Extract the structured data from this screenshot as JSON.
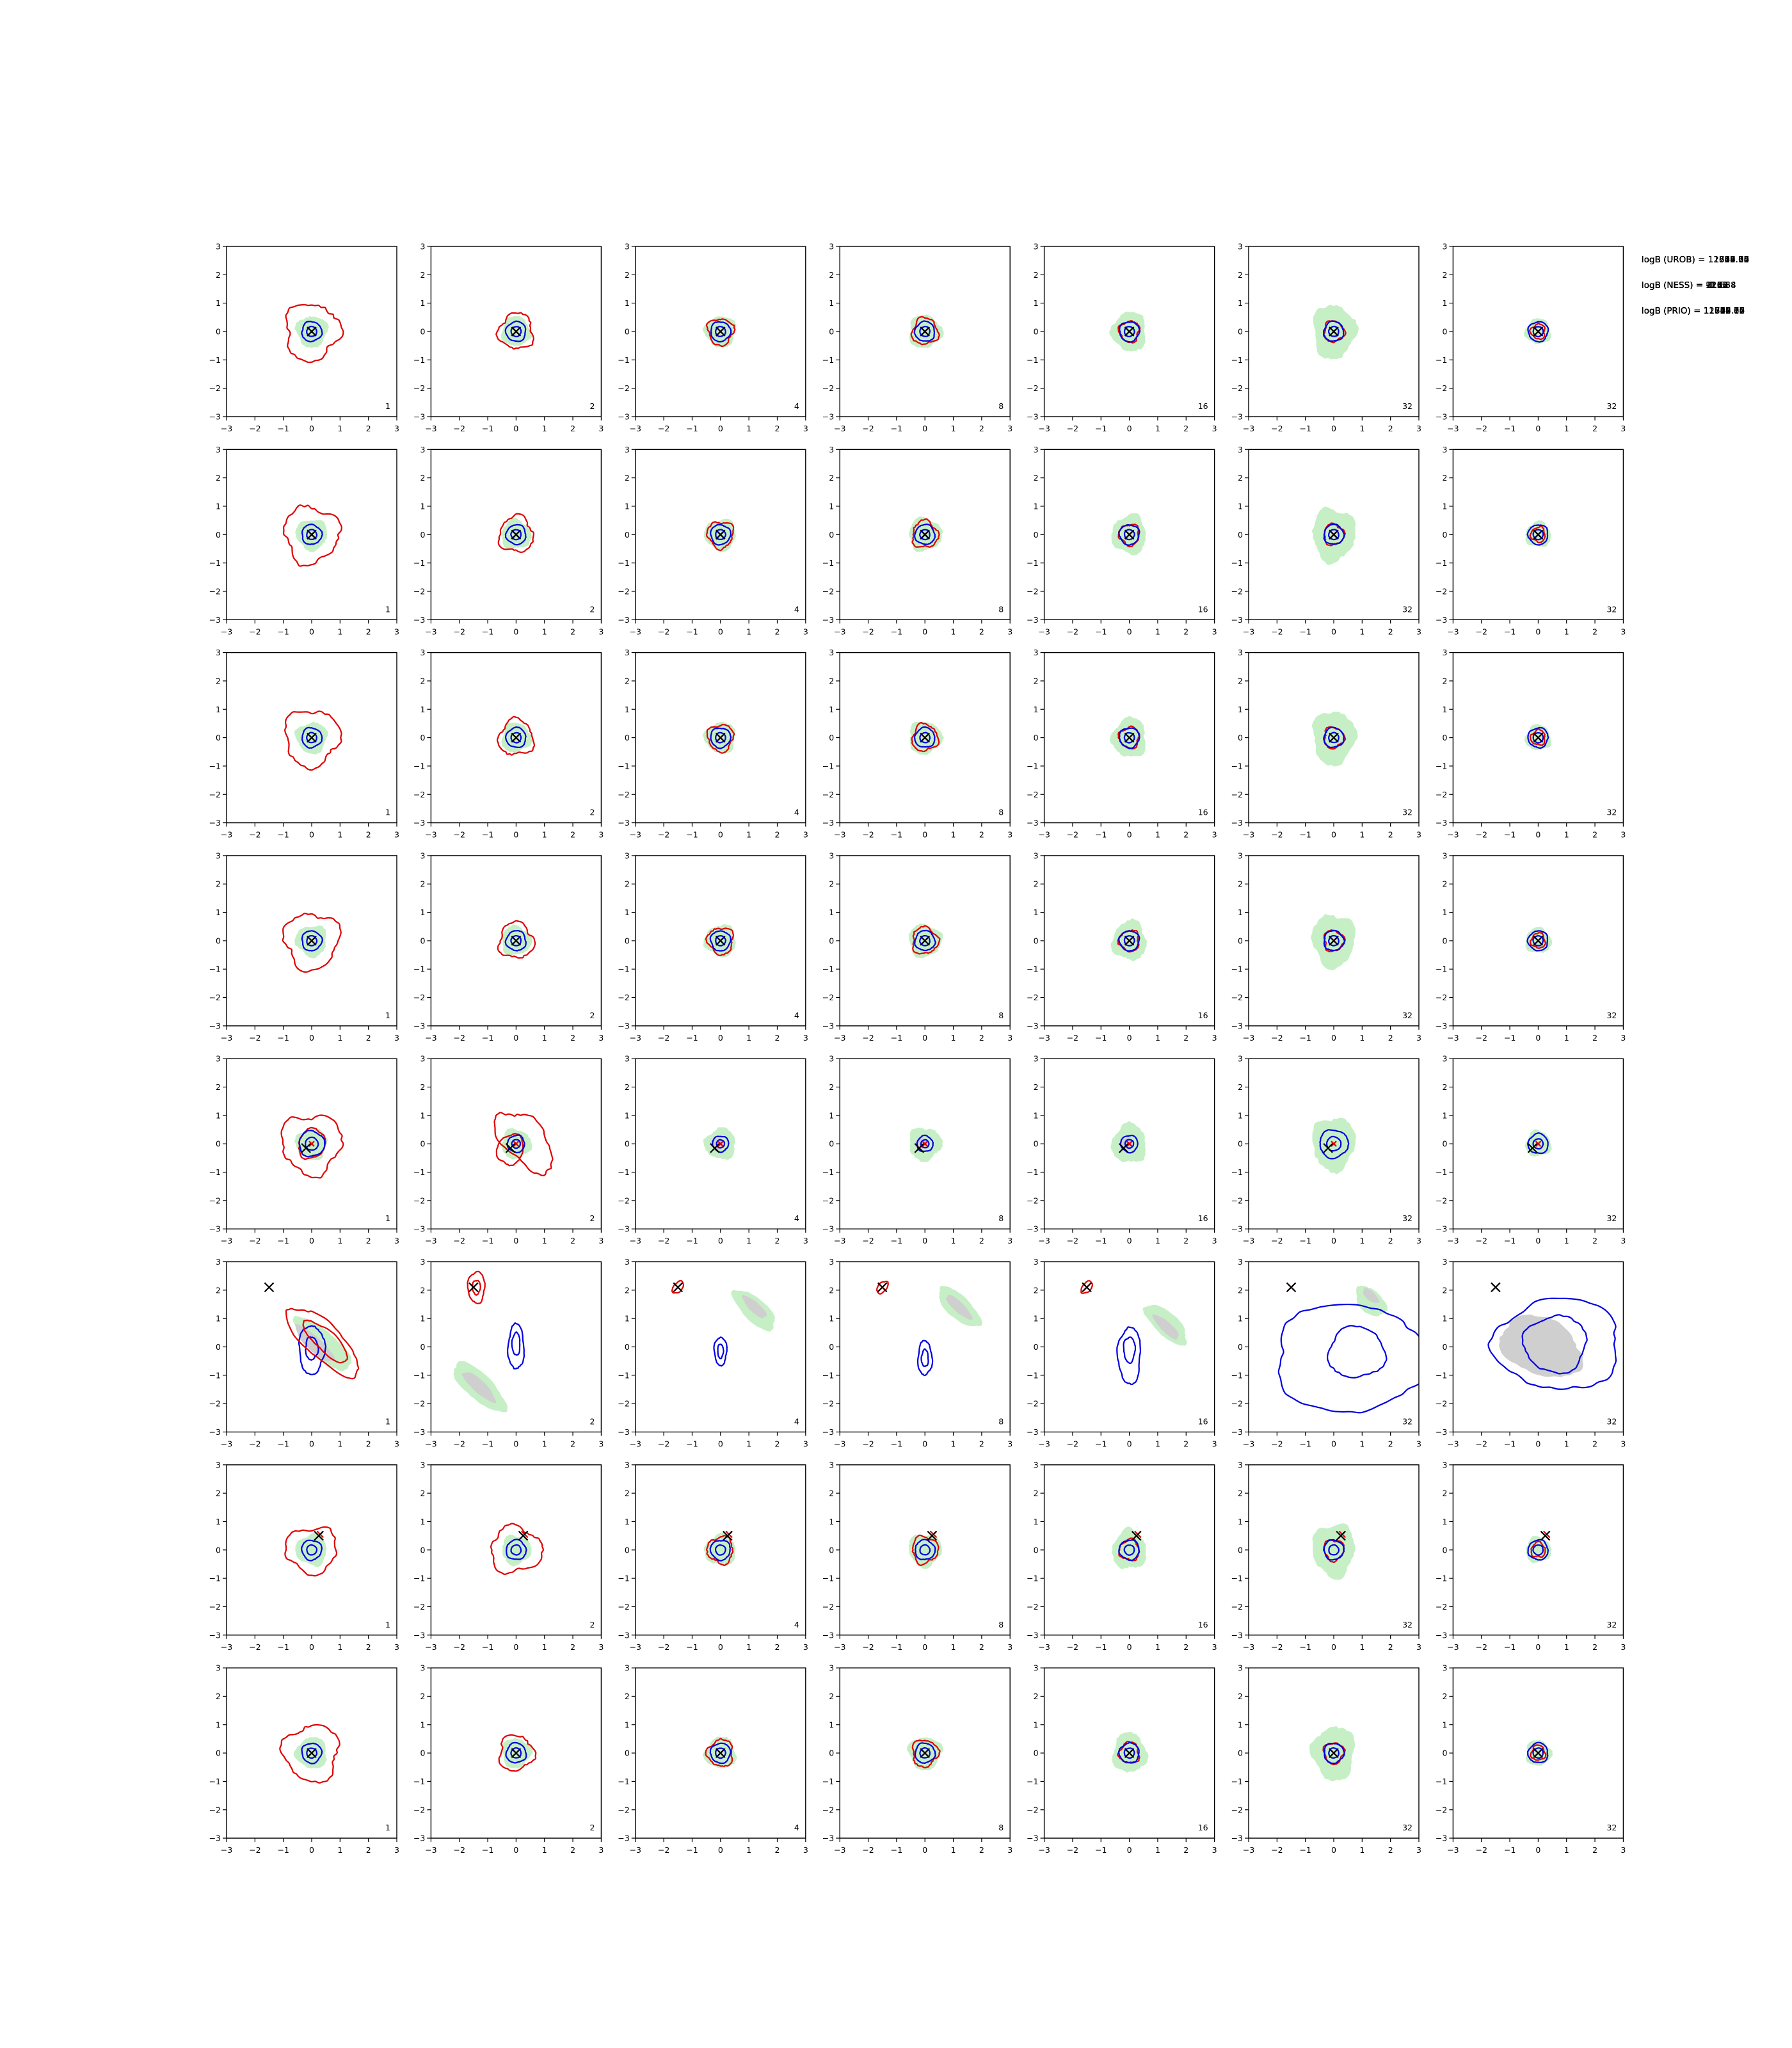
{
  "figure": {
    "colors": {
      "prior_fill": "#c6efc6",
      "posterior_fill": "#cfcfcf",
      "nested_contour": "#e00000",
      "mcmc_contour": "#0000e0",
      "truth_marker": "#000000",
      "axes": "#000000"
    },
    "column_labels": [
      "1",
      "2",
      "4",
      "8",
      "16",
      "32",
      "32"
    ],
    "rows": [
      {
        "annotations": [
          "logB (UROB) = 11779.76",
          "logB (NESS) = -0.87",
          "logB (PRIO) = 11779.76"
        ]
      },
      {
        "annotations": [
          "logB (UROB) = 11542.75",
          "logB (NESS) = -1.44",
          "logB (PRIO) = 11542.75"
        ]
      },
      {
        "annotations": [
          "logB (UROB) = 11616.05",
          "logB (NESS) = -1.48",
          "logB (PRIO) = 11616.05"
        ]
      },
      {
        "annotations": [
          "logB (UROB) = 11707.77",
          "logB (NESS) = -0.72",
          "logB (PRIO) = 11707.77"
        ]
      },
      {
        "annotations": [
          "logB (UROB) = 11824.82",
          "logB (NESS) = 110.34",
          "logB (PRIO) = 11824.82"
        ]
      },
      {
        "annotations": [
          "logB (UROB) = 12788.10",
          "logB (NESS) = 923.68",
          "logB (PRIO) = 12788.10"
        ]
      },
      {
        "annotations": [
          "logB (UROB) = 11633.64",
          "logB (NESS) = 21.66",
          "logB (PRIO) = 11633.64"
        ]
      },
      {
        "annotations": [
          "logB (UROB) = 11644.06",
          "logB (NESS) = -1.18",
          "logB (PRIO) = 11644.06"
        ]
      }
    ]
  },
  "chart_data": {
    "type": "contour_grid",
    "xlim": [
      -3,
      3
    ],
    "ylim": [
      -3,
      3
    ],
    "x_ticks": [
      "−3",
      "−2",
      "−1",
      "0",
      "1",
      "2",
      "3"
    ],
    "y_ticks": [
      "−3",
      "−2",
      "−1",
      "0",
      "1",
      "2",
      "3"
    ],
    "grid": false,
    "n_rows": 8,
    "n_cols": 7,
    "truth_points": [
      [
        0,
        0
      ],
      [
        0,
        0
      ],
      [
        0,
        0
      ],
      [
        0,
        0
      ],
      [
        -0.2,
        -0.15
      ],
      [
        -1.5,
        2.1
      ],
      [
        0.25,
        0.5
      ],
      [
        0,
        0
      ]
    ]
  }
}
